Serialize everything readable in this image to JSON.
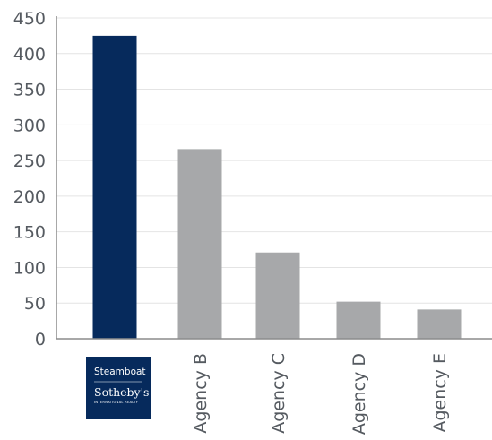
{
  "chart_data": {
    "type": "bar",
    "categories": [
      "Steamboat Sotheby's International Realty",
      "Agency B",
      "Agency C",
      "Agency D",
      "Agency E"
    ],
    "values": [
      425,
      266,
      121,
      52,
      41
    ],
    "ylim": [
      0,
      450
    ],
    "yticks": [
      0,
      50,
      100,
      150,
      200,
      250,
      300,
      350,
      400,
      450
    ],
    "title": "",
    "xlabel": "",
    "ylabel": "",
    "grid": true,
    "legend": "none",
    "highlight_index": 0,
    "colors": {
      "highlight": "#062a5c",
      "default": "#a7a8aa",
      "grid": "#e4e4e4",
      "axis": "#8c8c8c",
      "text": "#555a60"
    }
  },
  "logo": {
    "line1": "Steamboat",
    "line2": "Sotheby's",
    "line3": "INTERNATIONAL REALTY",
    "background": "#062a5c"
  }
}
